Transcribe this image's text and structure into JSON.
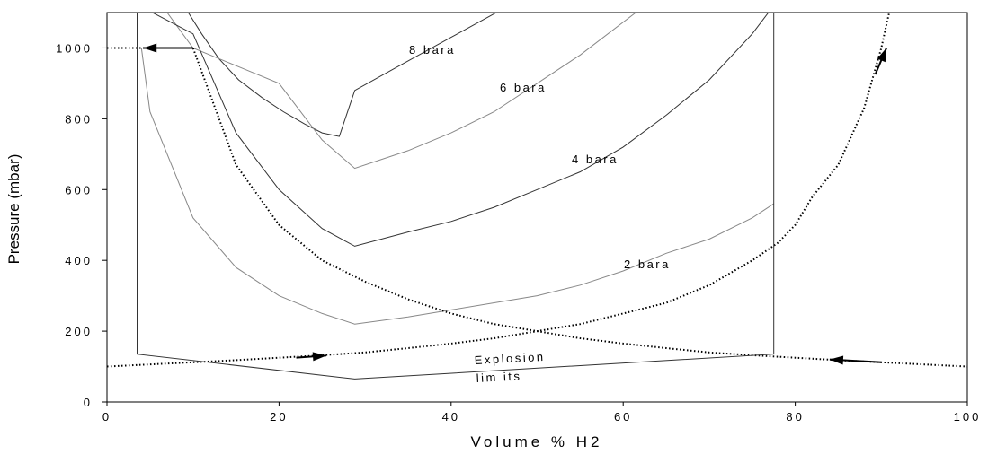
{
  "chart_data": {
    "type": "line",
    "xlabel": "Volume % H2",
    "ylabel": "Pressure (mbar)",
    "xlim": [
      0,
      100
    ],
    "ylim": [
      0,
      1100
    ],
    "xticks": [
      0,
      20,
      40,
      60,
      80,
      100
    ],
    "yticks": [
      0,
      200,
      400,
      600,
      800,
      1000
    ],
    "grid": false,
    "series": [
      {
        "name": "8 bara",
        "color": "#333333",
        "x": [
          9.2,
          11,
          13,
          15.3,
          18,
          20.5,
          23,
          25,
          27,
          28.8,
          34,
          40,
          46
        ],
        "y": [
          1110,
          1040,
          970,
          910,
          860,
          820,
          785,
          760,
          750,
          880,
          950,
          1030,
          1110
        ]
      },
      {
        "name": "6 bara",
        "color": "#888888",
        "x": [
          6.7,
          10,
          15,
          20,
          25,
          28.8,
          35,
          40,
          45,
          50,
          55,
          62
        ],
        "y": [
          1110,
          1000,
          950,
          900,
          740,
          660,
          710,
          760,
          820,
          900,
          980,
          1110
        ]
      },
      {
        "name": "4 bara",
        "color": "#333333",
        "x": [
          4.5,
          10,
          15,
          20,
          25,
          28.8,
          35,
          40,
          45,
          50,
          55,
          60,
          65,
          70,
          75,
          77.5
        ],
        "y": [
          1110,
          1040,
          760,
          600,
          490,
          440,
          480,
          510,
          550,
          600,
          650,
          720,
          810,
          910,
          1040,
          1120
        ]
      },
      {
        "name": "2 bara",
        "color": "#888888",
        "x": [
          4,
          5,
          10,
          15,
          20,
          25,
          28.8,
          35,
          40,
          45,
          50,
          55,
          60,
          65,
          70,
          75,
          77.5
        ],
        "y": [
          1000,
          820,
          520,
          380,
          300,
          250,
          220,
          240,
          260,
          280,
          300,
          330,
          370,
          420,
          460,
          520,
          560
        ]
      },
      {
        "name": "",
        "color": "#000000",
        "style": "dotted",
        "x": [
          0,
          10,
          15,
          20,
          25,
          30,
          35,
          40,
          45,
          50,
          55,
          60,
          65,
          70,
          75,
          80,
          85,
          90,
          95,
          100
        ],
        "y": [
          1000,
          1000,
          670,
          500,
          400,
          340,
          290,
          250,
          220,
          200,
          180,
          165,
          152,
          140,
          132,
          125,
          118,
          112,
          106,
          100
        ]
      },
      {
        "name": "",
        "color": "#000000",
        "style": "dotted",
        "x": [
          0,
          10,
          15,
          20,
          25,
          30,
          35,
          40,
          45,
          50,
          55,
          60,
          65,
          70,
          75,
          78,
          80,
          82,
          85,
          88,
          90,
          91
        ],
        "y": [
          100,
          112,
          118,
          125,
          132,
          140,
          152,
          165,
          180,
          200,
          220,
          250,
          280,
          330,
          400,
          450,
          500,
          580,
          670,
          830,
          1000,
          1110
        ]
      },
      {
        "name": "",
        "color": "#333333",
        "x": [
          3.5,
          3.5,
          28.8,
          77.5,
          77.5
        ],
        "y": [
          1110,
          135,
          65,
          135,
          1120
        ]
      }
    ],
    "annotations": [
      "8 bara",
      "6 bara",
      "4 bara",
      "2 bara",
      "Explosion",
      "lim its"
    ]
  }
}
